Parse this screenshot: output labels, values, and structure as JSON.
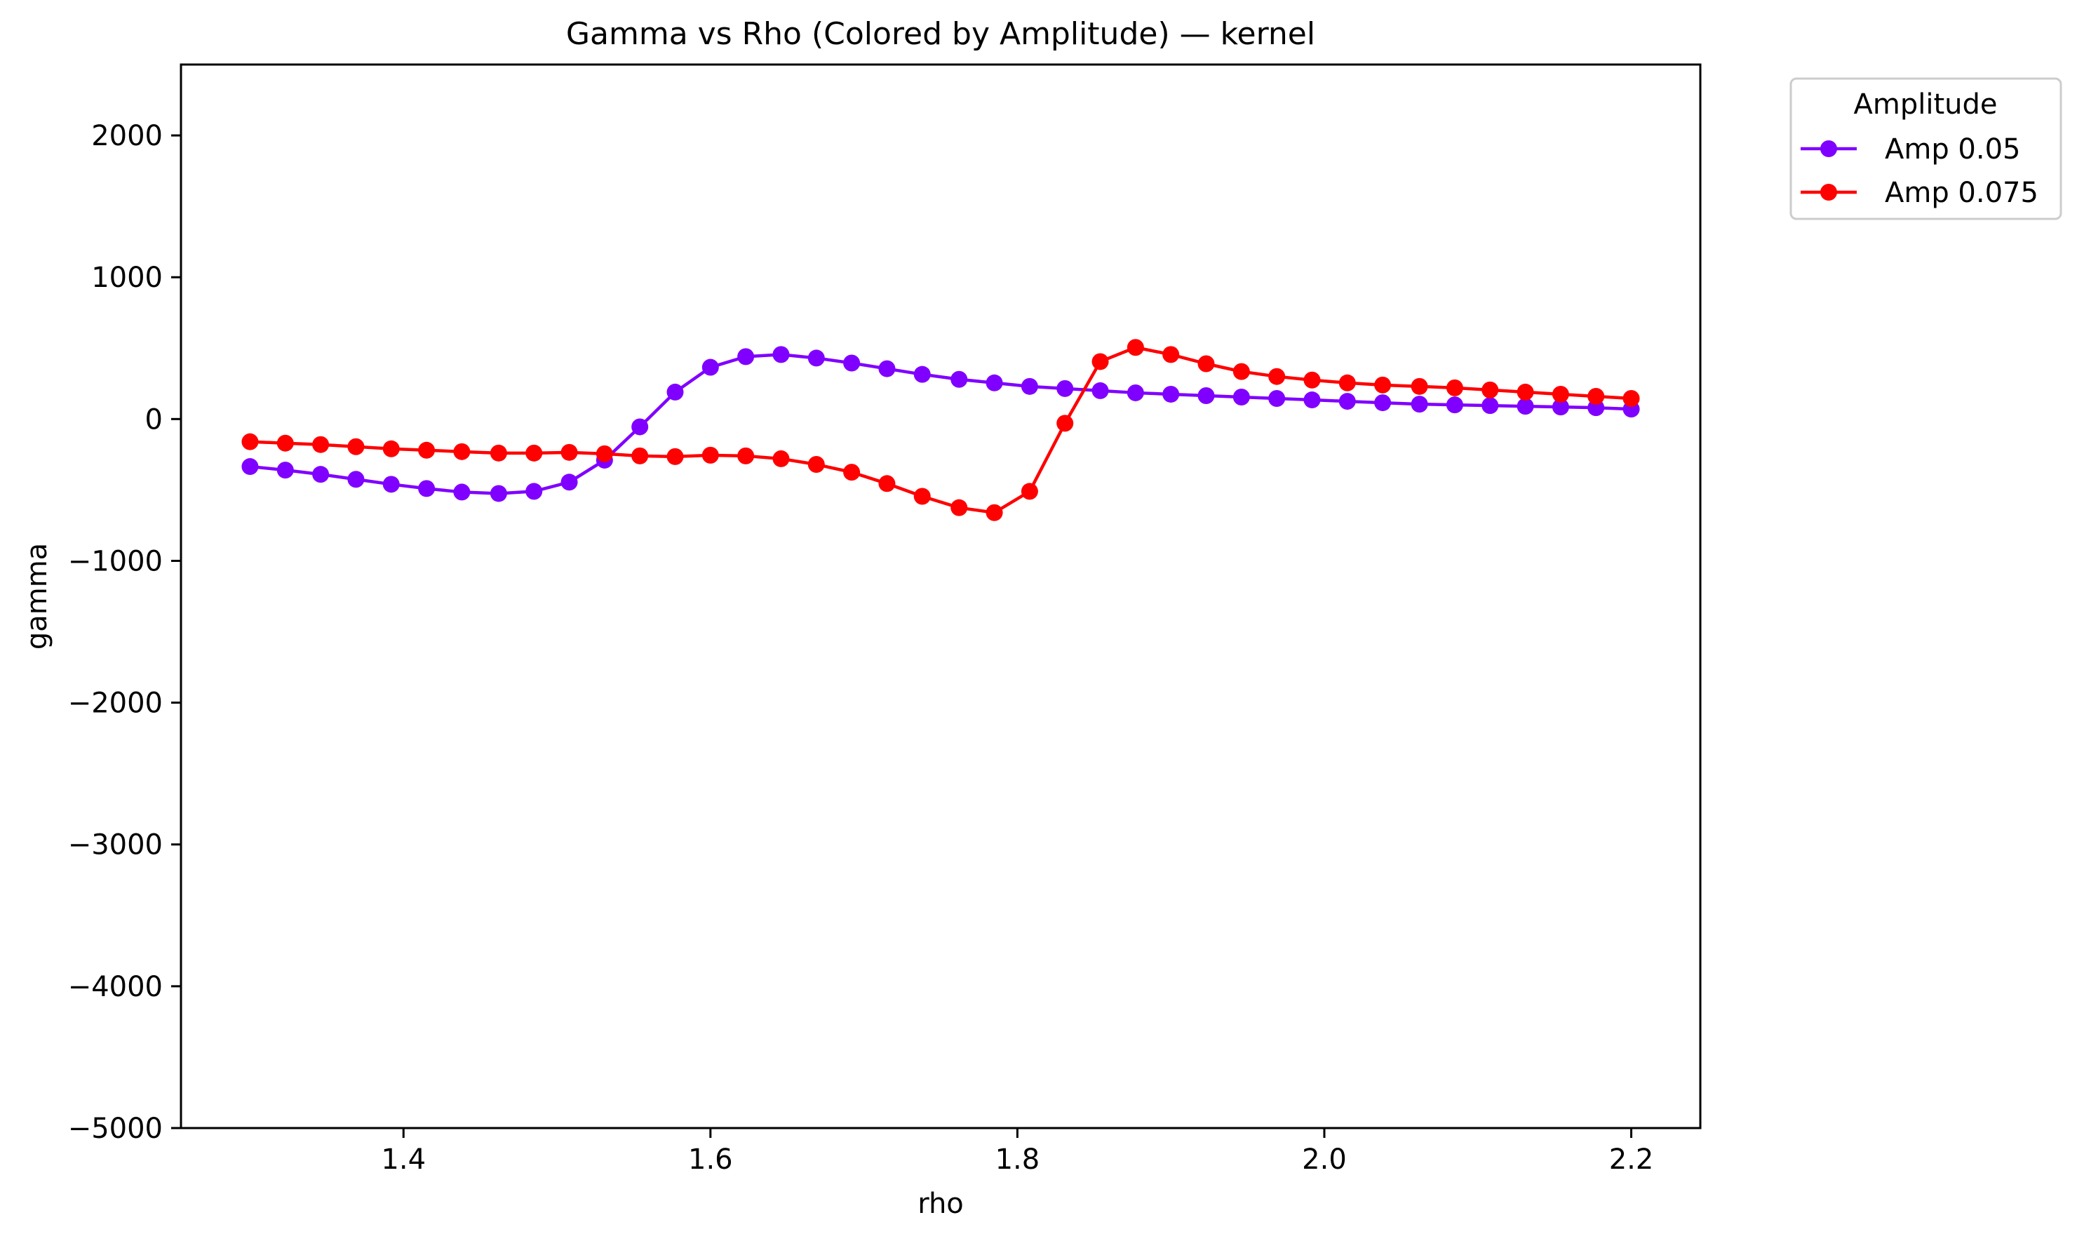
{
  "chart_data": {
    "type": "line",
    "title": "Gamma vs Rho (Colored by Amplitude) — kernel",
    "xlabel": "rho",
    "ylabel": "gamma",
    "xlim": [
      1.255,
      2.245
    ],
    "ylim": [
      -5000,
      2500
    ],
    "xticks": [
      1.4,
      1.6,
      1.8,
      2.0,
      2.2
    ],
    "xtick_labels": [
      "1.4",
      "1.6",
      "1.8",
      "2.0",
      "2.2"
    ],
    "yticks": [
      -5000,
      -4000,
      -3000,
      -2000,
      -1000,
      0,
      1000,
      2000
    ],
    "ytick_labels": [
      "−5000",
      "−4000",
      "−3000",
      "−2000",
      "−1000",
      "0",
      "1000",
      "2000"
    ],
    "grid": false,
    "legend": {
      "title": "Amplitude",
      "position": "outside-top-right"
    },
    "x": [
      1.3,
      1.323,
      1.346,
      1.369,
      1.392,
      1.415,
      1.438,
      1.462,
      1.485,
      1.508,
      1.531,
      1.554,
      1.577,
      1.6,
      1.623,
      1.646,
      1.669,
      1.692,
      1.715,
      1.738,
      1.762,
      1.785,
      1.808,
      1.831,
      1.854,
      1.877,
      1.9,
      1.923,
      1.946,
      1.969,
      1.992,
      2.015,
      2.038,
      2.062,
      2.085,
      2.108,
      2.131,
      2.154,
      2.177,
      2.2
    ],
    "series": [
      {
        "name": "Amp 0.05",
        "color": "#8000ff",
        "values": [
          -335,
          -360,
          -390,
          -425,
          -460,
          -490,
          -515,
          -525,
          -510,
          -445,
          -290,
          -55,
          190,
          365,
          440,
          455,
          430,
          395,
          355,
          315,
          280,
          255,
          230,
          215,
          200,
          185,
          175,
          165,
          155,
          145,
          135,
          125,
          115,
          105,
          100,
          95,
          90,
          85,
          80,
          70
        ]
      },
      {
        "name": "Amp 0.075",
        "color": "#ff0000",
        "values": [
          -160,
          -170,
          -180,
          -195,
          -210,
          -220,
          -230,
          -240,
          -240,
          -235,
          -245,
          -260,
          -265,
          -255,
          -260,
          -280,
          -320,
          -375,
          -455,
          -545,
          -625,
          -660,
          -510,
          -30,
          405,
          505,
          455,
          390,
          335,
          300,
          275,
          255,
          240,
          230,
          220,
          205,
          190,
          175,
          160,
          145
        ]
      }
    ]
  }
}
